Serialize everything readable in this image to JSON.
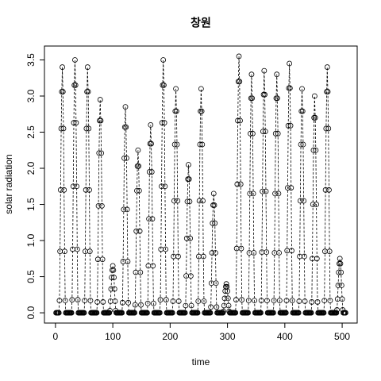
{
  "chart_data": {
    "type": "line",
    "title": "창원",
    "xlabel": "time",
    "ylabel": "solar radiation",
    "xlim": [
      -19.2,
      526.2
    ],
    "xticks": [
      0,
      100,
      200,
      300,
      400,
      500
    ],
    "ylim": [
      -0.142,
      3.692
    ],
    "yticks": [
      {
        "value": 0,
        "label": "0.0"
      },
      0.5,
      {
        "value": 1,
        "label": "1.0"
      },
      1.5,
      {
        "value": 2,
        "label": "2.0"
      },
      2.5,
      {
        "value": 3,
        "label": "3.0"
      },
      3.5
    ],
    "color": "#000000",
    "line_style": "dashed",
    "x": [
      1,
      2,
      3,
      4,
      5,
      6,
      7,
      8,
      9,
      10,
      11,
      12,
      13,
      14,
      15,
      16,
      17,
      18,
      19,
      20,
      21,
      22,
      23,
      24,
      25,
      26,
      27,
      28,
      29,
      30,
      31,
      32,
      33,
      34,
      35,
      36,
      37,
      38,
      39,
      40,
      41,
      42,
      43,
      44,
      45,
      46,
      47,
      48,
      49,
      50,
      51,
      52,
      53,
      54,
      55,
      56,
      57,
      58,
      59,
      60,
      61,
      62,
      63,
      64,
      65,
      66,
      67,
      68,
      69,
      70,
      71,
      72,
      73,
      74,
      75,
      76,
      77,
      78,
      79,
      80,
      81,
      82,
      83,
      84,
      85,
      86,
      87,
      88,
      89,
      90,
      91,
      92,
      93,
      94,
      95,
      96,
      97,
      98,
      99,
      100,
      101,
      102,
      103,
      104,
      105,
      106,
      107,
      108,
      109,
      110,
      111,
      112,
      113,
      114,
      115,
      116,
      117,
      118,
      119,
      120,
      121,
      122,
      123,
      124,
      125,
      126,
      127,
      128,
      129,
      130,
      131,
      132,
      133,
      134,
      135,
      136,
      137,
      138,
      139,
      140,
      141,
      142,
      143,
      144,
      145,
      146,
      147,
      148,
      149,
      150,
      151,
      152,
      153,
      154,
      155,
      156,
      157,
      158,
      159,
      160,
      161,
      162,
      163,
      164,
      165,
      166,
      167,
      168,
      169,
      170,
      171,
      172,
      173,
      174,
      175,
      176,
      177,
      178,
      179,
      180,
      181,
      182,
      183,
      184,
      185,
      186,
      187,
      188,
      189,
      190,
      191,
      192,
      193,
      194,
      195,
      196,
      197,
      198,
      199,
      200,
      201,
      202,
      203,
      204,
      205,
      206,
      207,
      208,
      209,
      210,
      211,
      212,
      213,
      214,
      215,
      216,
      217,
      218,
      219,
      220,
      221,
      222,
      223,
      224,
      225,
      226,
      227,
      228,
      229,
      230,
      231,
      232,
      233,
      234,
      235,
      236,
      237,
      238,
      239,
      240,
      241,
      242,
      243,
      244,
      245,
      246,
      247,
      248,
      249,
      250,
      251,
      252,
      253,
      254,
      255,
      256,
      257,
      258,
      259,
      260,
      261,
      262,
      263,
      264,
      265,
      266,
      267,
      268,
      269,
      270,
      271,
      272,
      273,
      274,
      275,
      276,
      277,
      278,
      279,
      280,
      281,
      282,
      283,
      284,
      285,
      286,
      287,
      288,
      289,
      290,
      291,
      292,
      293,
      294,
      295,
      296,
      297,
      298,
      299,
      300,
      301,
      302,
      303,
      304,
      305,
      306,
      307,
      308,
      309,
      310,
      311,
      312,
      313,
      314,
      315,
      316,
      317,
      318,
      319,
      320,
      321,
      322,
      323,
      324,
      325,
      326,
      327,
      328,
      329,
      330,
      331,
      332,
      333,
      334,
      335,
      336,
      337,
      338,
      339,
      340,
      341,
      342,
      343,
      344,
      345,
      346,
      347,
      348,
      349,
      350,
      351,
      352,
      353,
      354,
      355,
      356,
      357,
      358,
      359,
      360,
      361,
      362,
      363,
      364,
      365,
      366,
      367,
      368,
      369,
      370,
      371,
      372,
      373,
      374,
      375,
      376,
      377,
      378,
      379,
      380,
      381,
      382,
      383,
      384,
      385,
      386,
      387,
      388,
      389,
      390,
      391,
      392,
      393,
      394,
      395,
      396,
      397,
      398,
      399,
      400,
      401,
      402,
      403,
      404,
      405,
      406,
      407,
      408,
      409,
      410,
      411,
      412,
      413,
      414,
      415,
      416,
      417,
      418,
      419,
      420,
      421,
      422,
      423,
      424,
      425,
      426,
      427,
      428,
      429,
      430,
      431,
      432,
      433,
      434,
      435,
      436,
      437,
      438,
      439,
      440,
      441,
      442,
      443,
      444,
      445,
      446,
      447,
      448,
      449,
      450,
      451,
      452,
      453,
      454,
      455,
      456,
      457,
      458,
      459,
      460,
      461,
      462,
      463,
      464,
      465,
      466,
      467,
      468,
      469,
      470,
      471,
      472,
      473,
      474,
      475,
      476,
      477,
      478,
      479,
      480,
      481,
      482,
      483,
      484,
      485,
      486,
      487,
      488,
      489,
      490,
      491,
      492,
      493,
      494,
      495,
      496,
      497,
      498,
      499,
      500,
      501,
      502,
      503,
      504,
      505,
      506
    ],
    "values": [
      0,
      0,
      0,
      0,
      0,
      0,
      0.17,
      0.85,
      1.7,
      2.55,
      3.06,
      3.4,
      3.06,
      2.55,
      1.7,
      0.85,
      0.17,
      0,
      0,
      0,
      0,
      0,
      0,
      0,
      0,
      0,
      0,
      0,
      0.18,
      0.88,
      1.75,
      2.63,
      3.15,
      3.5,
      3.15,
      2.63,
      1.75,
      0.88,
      0.18,
      0,
      0,
      0,
      0,
      0,
      0,
      0,
      0,
      0,
      0,
      0,
      0.17,
      0.85,
      1.7,
      2.55,
      3.06,
      3.4,
      3.06,
      2.55,
      1.7,
      0.85,
      0.17,
      0,
      0,
      0,
      0,
      0,
      0,
      0,
      0,
      0,
      0,
      0,
      0.15,
      0.74,
      1.48,
      2.21,
      2.66,
      2.95,
      2.66,
      2.21,
      1.48,
      0.74,
      0.15,
      0,
      0,
      0,
      0,
      0,
      0,
      0,
      0,
      0,
      0,
      0,
      0.03,
      0.16,
      0.33,
      0.49,
      0.59,
      0.65,
      0.59,
      0.49,
      0.33,
      0.16,
      0.03,
      0,
      0,
      0,
      0,
      0,
      0,
      0,
      0,
      0,
      0,
      0,
      0.14,
      0.71,
      1.43,
      2.14,
      2.57,
      2.85,
      2.57,
      2.14,
      1.43,
      0.71,
      0.14,
      0,
      0,
      0,
      0,
      0,
      0,
      0,
      0,
      0,
      0,
      0,
      0.11,
      0.56,
      1.13,
      1.69,
      2.03,
      2.25,
      2.03,
      1.69,
      1.13,
      0.56,
      0.11,
      0,
      0,
      0,
      0,
      0,
      0,
      0,
      0,
      0,
      0,
      0,
      0.13,
      0.65,
      1.3,
      1.95,
      2.34,
      2.6,
      2.34,
      1.95,
      1.3,
      0.65,
      0.13,
      0,
      0,
      0,
      0,
      0,
      0,
      0,
      0,
      0,
      0,
      0,
      0.18,
      0.88,
      1.75,
      2.63,
      3.15,
      3.5,
      3.15,
      2.63,
      1.75,
      0.88,
      0.18,
      0,
      0,
      0,
      0,
      0,
      0,
      0,
      0,
      0,
      0,
      0,
      0.16,
      0.78,
      1.55,
      2.33,
      2.79,
      3.1,
      2.79,
      2.33,
      1.55,
      0.78,
      0.16,
      0,
      0,
      0,
      0,
      0,
      0,
      0,
      0,
      0,
      0,
      0,
      0.1,
      0.51,
      1.03,
      1.54,
      1.85,
      2.05,
      1.85,
      1.54,
      1.03,
      0.51,
      0.1,
      0,
      0,
      0,
      0,
      0,
      0,
      0,
      0,
      0,
      0,
      0,
      0.16,
      0.78,
      1.55,
      2.33,
      2.79,
      3.1,
      2.79,
      2.33,
      1.55,
      0.78,
      0.16,
      0,
      0,
      0,
      0,
      0,
      0,
      0,
      0,
      0,
      0,
      0,
      0.08,
      0.41,
      0.83,
      1.24,
      1.49,
      1.65,
      1.49,
      1.24,
      0.83,
      0.41,
      0.08,
      0,
      0,
      0,
      0,
      0,
      0,
      0,
      0,
      0,
      0,
      0,
      0.02,
      0.1,
      0.2,
      0.3,
      0.36,
      0.4,
      0.36,
      0.3,
      0.2,
      0.1,
      0.02,
      0,
      0,
      0,
      0,
      0,
      0,
      0,
      0,
      0,
      0,
      0,
      0.18,
      0.89,
      1.78,
      2.66,
      3.2,
      3.55,
      3.2,
      2.66,
      1.78,
      0.89,
      0.18,
      0,
      0,
      0,
      0,
      0,
      0,
      0,
      0,
      0,
      0,
      0,
      0.17,
      0.83,
      1.65,
      2.48,
      2.97,
      3.3,
      2.97,
      2.48,
      1.65,
      0.83,
      0.17,
      0,
      0,
      0,
      0,
      0,
      0,
      0,
      0,
      0,
      0,
      0,
      0.17,
      0.84,
      1.68,
      2.51,
      3.02,
      3.35,
      3.02,
      2.51,
      1.68,
      0.84,
      0.17,
      0,
      0,
      0,
      0,
      0,
      0,
      0,
      0,
      0,
      0,
      0,
      0.17,
      0.83,
      1.65,
      2.48,
      2.97,
      3.3,
      2.97,
      2.48,
      1.65,
      0.83,
      0.17,
      0,
      0,
      0,
      0,
      0,
      0,
      0,
      0,
      0,
      0,
      0,
      0.17,
      0.86,
      1.73,
      2.59,
      3.11,
      3.45,
      3.11,
      2.59,
      1.73,
      0.86,
      0.17,
      0,
      0,
      0,
      0,
      0,
      0,
      0,
      0,
      0,
      0,
      0,
      0.16,
      0.78,
      1.55,
      2.33,
      2.79,
      3.1,
      2.79,
      2.33,
      1.55,
      0.78,
      0.16,
      0,
      0,
      0,
      0,
      0,
      0,
      0,
      0,
      0,
      0,
      0,
      0.15,
      0.75,
      1.5,
      2.25,
      2.7,
      3.0,
      2.7,
      2.25,
      1.5,
      0.75,
      0.15,
      0,
      0,
      0,
      0,
      0,
      0,
      0,
      0,
      0,
      0,
      0,
      0.17,
      0.85,
      1.7,
      2.55,
      3.06,
      3.4,
      3.06,
      2.55,
      1.7,
      0.85,
      0.17,
      0,
      0,
      0,
      0,
      0,
      0,
      0,
      0,
      0,
      0,
      0,
      0.04,
      0.19,
      0.38,
      0.56,
      0.68,
      0.75,
      0.68,
      0.56,
      0.38,
      0.19,
      0.04,
      0,
      0,
      0,
      0,
      0
    ]
  }
}
